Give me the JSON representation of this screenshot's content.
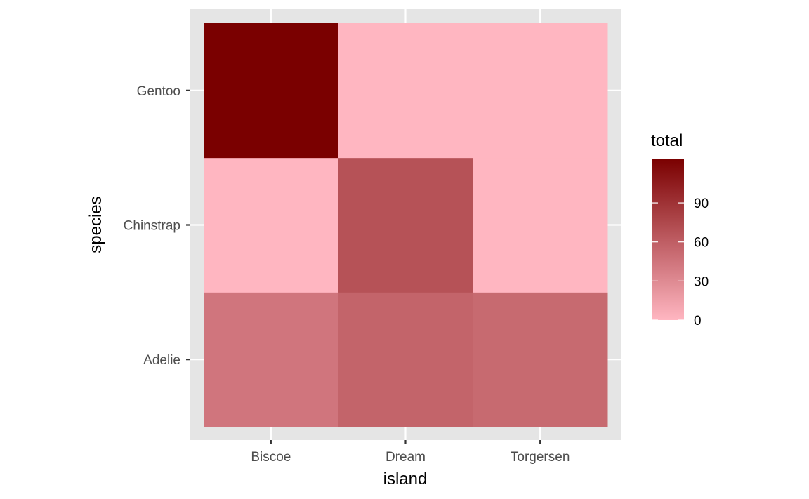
{
  "chart_data": {
    "type": "heatmap",
    "x_categories": [
      "Biscoe",
      "Dream",
      "Torgersen"
    ],
    "y_categories": [
      "Adelie",
      "Chinstrap",
      "Gentoo"
    ],
    "values": [
      {
        "x": "Biscoe",
        "y": "Adelie",
        "value": 44
      },
      {
        "x": "Dream",
        "y": "Adelie",
        "value": 56
      },
      {
        "x": "Torgersen",
        "y": "Adelie",
        "value": 52
      },
      {
        "x": "Biscoe",
        "y": "Chinstrap",
        "value": 0
      },
      {
        "x": "Dream",
        "y": "Chinstrap",
        "value": 68
      },
      {
        "x": "Torgersen",
        "y": "Chinstrap",
        "value": 0
      },
      {
        "x": "Biscoe",
        "y": "Gentoo",
        "value": 124
      },
      {
        "x": "Dream",
        "y": "Gentoo",
        "value": 0
      },
      {
        "x": "Torgersen",
        "y": "Gentoo",
        "value": 0
      }
    ],
    "xlabel": "island",
    "ylabel": "species",
    "legend": {
      "title": "total",
      "breaks": [
        0,
        30,
        60,
        90
      ],
      "range": [
        0,
        124
      ],
      "low_color": "#ffb6c1",
      "high_color": "#7a0000",
      "placement": "right"
    },
    "grid": true,
    "panel_background": "#e5e5e5",
    "grid_color": "#ffffff"
  }
}
